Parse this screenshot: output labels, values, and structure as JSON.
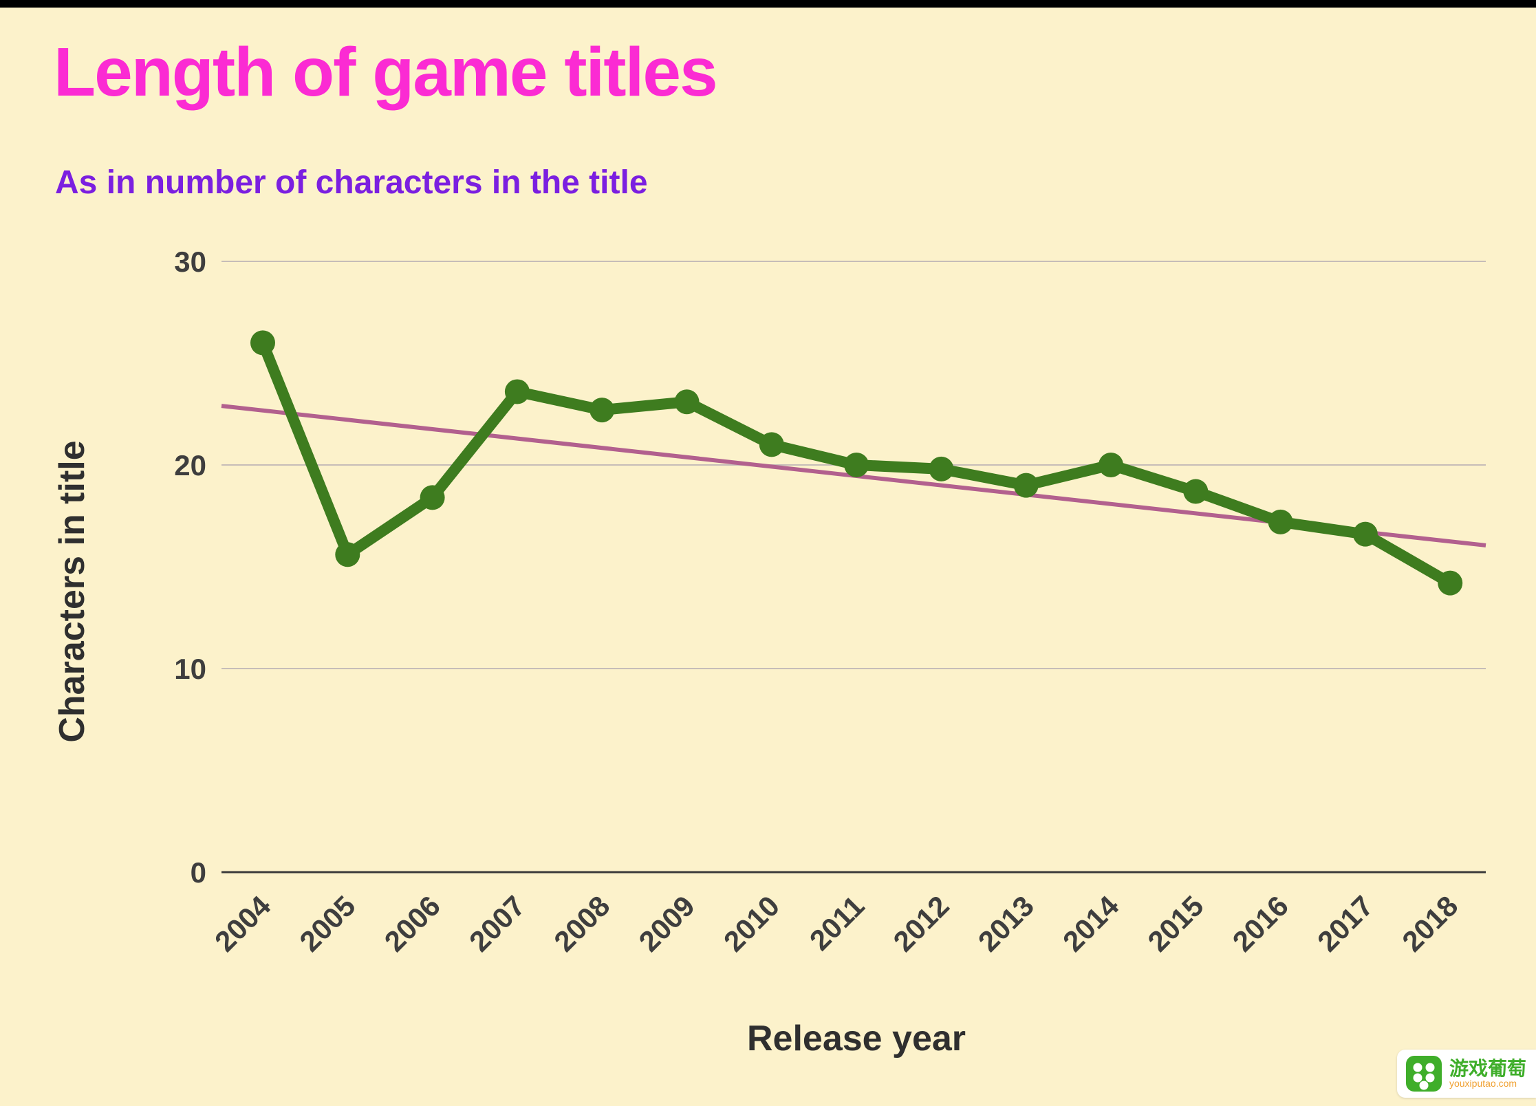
{
  "page": {
    "title": "Length of game titles",
    "subtitle": "As in number of characters in the title"
  },
  "chart_data": {
    "type": "line",
    "title": "Length of game titles",
    "subtitle": "As in number of characters in the title",
    "xlabel": "Release year",
    "ylabel": "Characters in title",
    "categories": [
      "2004",
      "2005",
      "2006",
      "2007",
      "2008",
      "2009",
      "2010",
      "2011",
      "2012",
      "2013",
      "2014",
      "2015",
      "2016",
      "2017",
      "2018"
    ],
    "values": [
      26,
      15.6,
      18.4,
      23.6,
      22.7,
      23.1,
      21,
      20,
      19.8,
      19,
      20,
      18.7,
      17.2,
      16.6,
      14.2
    ],
    "trendline": {
      "start": 22.9,
      "end": 16.05
    },
    "ylim": [
      0,
      30
    ],
    "yticks": [
      0,
      10,
      20,
      30
    ],
    "grid": true,
    "legend": false
  },
  "watermark": {
    "name": "游戏葡萄",
    "url": "youxiputao.com"
  },
  "colors": {
    "background": "#fcf2cb",
    "topbar": "#000000",
    "title": "#fb2bd3",
    "subtitle": "#7b1fe0",
    "series": "#3e7c1f",
    "trend": "#b2608e",
    "grid": "#c6bdb8",
    "axis": "#3a3a3a",
    "watermark_green": "#3fae2a"
  }
}
